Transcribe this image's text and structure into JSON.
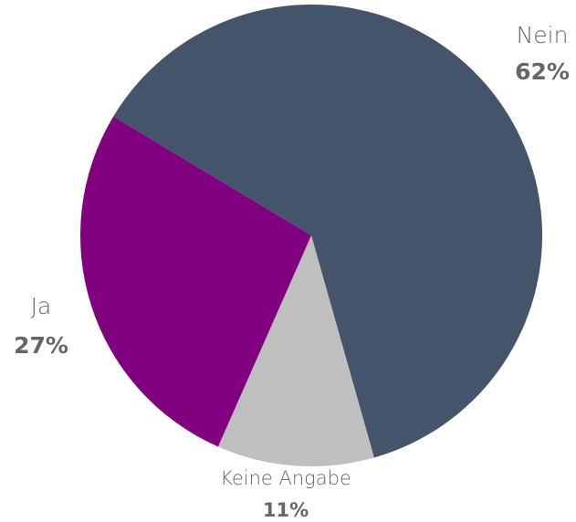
{
  "chart_data": {
    "type": "pie",
    "categories": [
      "Nein",
      "Keine Angabe",
      "Ja"
    ],
    "values": [
      62,
      11,
      27
    ],
    "value_labels": [
      "62%",
      "11%",
      "27%"
    ],
    "colors": [
      "#44546a",
      "#bfbfbf",
      "#800080"
    ]
  }
}
